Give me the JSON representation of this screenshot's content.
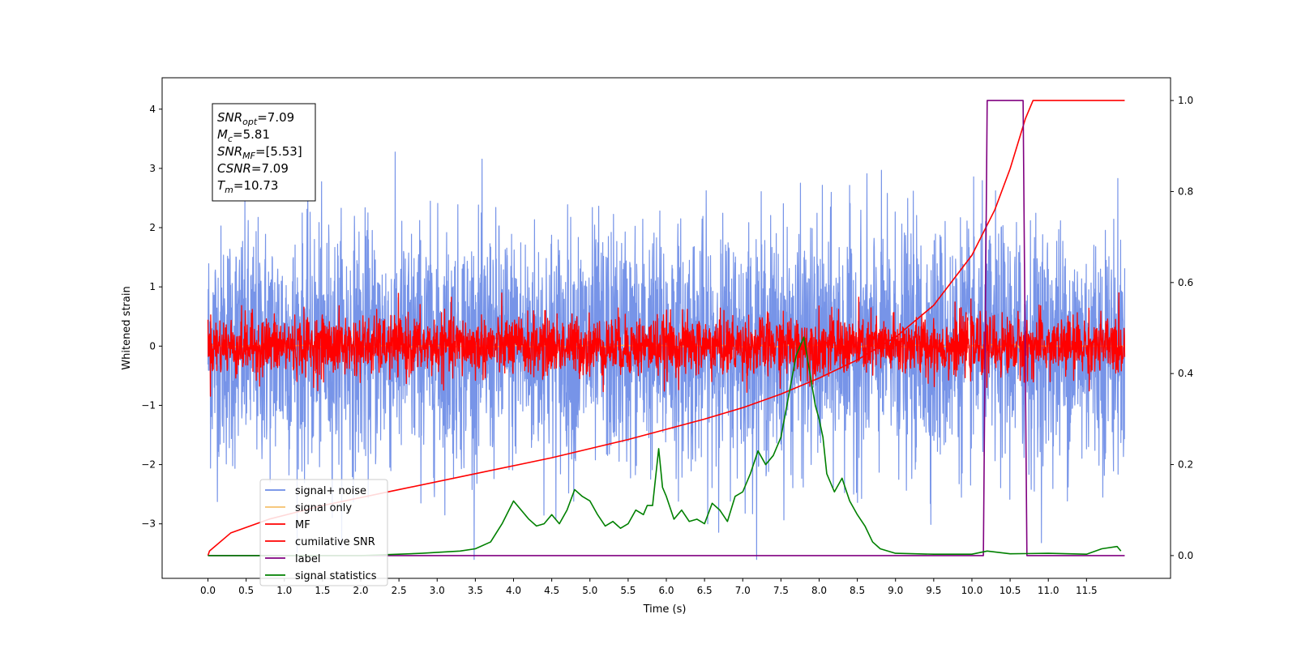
{
  "chart_data": {
    "type": "line",
    "xlabel": "Time (s)",
    "ylabel": "Whitened strain",
    "xlim": [
      -0.6,
      12.6
    ],
    "ylim": [
      -3.92,
      4.53
    ],
    "ylim_right": [
      -0.05,
      1.05
    ],
    "x_ticks": [
      "0.0",
      "0.5",
      "1.0",
      "1.5",
      "2.0",
      "2.5",
      "3.0",
      "3.5",
      "4.0",
      "4.5",
      "5.0",
      "5.5",
      "6.0",
      "6.5",
      "7.0",
      "7.5",
      "8.0",
      "8.5",
      "9.0",
      "9.5",
      "10.0",
      "10.5",
      "11.0",
      "11.5"
    ],
    "y_ticks": [
      "−3",
      "−2",
      "−1",
      "0",
      "1",
      "2",
      "3",
      "4"
    ],
    "y_ticks_right": [
      "0.0",
      "0.2",
      "0.4",
      "0.6",
      "0.8",
      "1.0"
    ],
    "grid": false,
    "legend_position": "lower-left",
    "annotation": [
      {
        "base": "SNR",
        "sub": "opt",
        "rest": "=7.09"
      },
      {
        "base": "M",
        "sub": "c",
        "rest": "=5.81"
      },
      {
        "base": "SNR",
        "sub": "MF",
        "rest": "=[5.53]"
      },
      {
        "base": "CSNR",
        "sub": "",
        "rest": "=7.09"
      },
      {
        "base": "T",
        "sub": "m",
        "rest": "=10.73"
      }
    ],
    "series": [
      {
        "name": "signal+ noise",
        "color": "#6b8be6",
        "axis": "left",
        "kind": "noise",
        "amplitude": 1.0,
        "x_range": [
          0.0,
          12.0
        ]
      },
      {
        "name": "signal only",
        "color": "#f5c16c",
        "axis": "left",
        "kind": "chirp",
        "x_range": [
          0.0,
          12.0
        ]
      },
      {
        "name": "MF",
        "color": "#ff0000",
        "axis": "left",
        "kind": "noise",
        "amplitude": 0.25,
        "x_range": [
          0.0,
          12.0
        ]
      },
      {
        "name": "cumilative SNR",
        "color": "#ff0000",
        "axis": "right",
        "x": [
          0.0,
          0.02,
          0.3,
          0.8,
          1.5,
          2.5,
          3.5,
          4.5,
          5.5,
          6.5,
          7.0,
          7.5,
          8.0,
          8.5,
          9.0,
          9.5,
          10.0,
          10.3,
          10.5,
          10.7,
          10.8,
          12.0
        ],
        "y": [
          0.0,
          0.01,
          0.05,
          0.08,
          0.11,
          0.145,
          0.18,
          0.215,
          0.255,
          0.3,
          0.325,
          0.355,
          0.39,
          0.43,
          0.48,
          0.55,
          0.66,
          0.76,
          0.85,
          0.96,
          1.0,
          1.0
        ]
      },
      {
        "name": "label",
        "color": "#800080",
        "axis": "right",
        "x": [
          0.0,
          10.15,
          10.2,
          10.67,
          10.72,
          12.0
        ],
        "y": [
          0.0,
          0.0,
          1.0,
          1.0,
          0.0,
          0.0
        ]
      },
      {
        "name": "signal statistics",
        "color": "#008000",
        "axis": "right",
        "x": [
          0.0,
          1.0,
          2.0,
          2.8,
          3.0,
          3.3,
          3.5,
          3.7,
          3.85,
          4.0,
          4.1,
          4.2,
          4.3,
          4.4,
          4.5,
          4.6,
          4.7,
          4.8,
          4.9,
          5.0,
          5.1,
          5.2,
          5.3,
          5.4,
          5.5,
          5.6,
          5.7,
          5.75,
          5.82,
          5.9,
          5.95,
          6.0,
          6.1,
          6.2,
          6.3,
          6.4,
          6.5,
          6.6,
          6.7,
          6.8,
          6.9,
          7.0,
          7.1,
          7.2,
          7.3,
          7.4,
          7.5,
          7.6,
          7.7,
          7.8,
          7.9,
          7.95,
          8.0,
          8.05,
          8.1,
          8.2,
          8.3,
          8.4,
          8.5,
          8.6,
          8.7,
          8.8,
          9.0,
          9.5,
          10.0,
          10.2,
          10.5,
          11.0,
          11.5,
          11.7,
          11.9,
          11.95
        ],
        "y": [
          0.0,
          0.0,
          0.0,
          0.005,
          0.007,
          0.01,
          0.015,
          0.03,
          0.07,
          0.12,
          0.1,
          0.08,
          0.065,
          0.07,
          0.09,
          0.07,
          0.1,
          0.145,
          0.13,
          0.12,
          0.09,
          0.065,
          0.075,
          0.06,
          0.07,
          0.1,
          0.09,
          0.11,
          0.11,
          0.235,
          0.15,
          0.13,
          0.08,
          0.1,
          0.075,
          0.08,
          0.07,
          0.115,
          0.1,
          0.075,
          0.13,
          0.14,
          0.18,
          0.23,
          0.2,
          0.22,
          0.26,
          0.35,
          0.44,
          0.48,
          0.38,
          0.33,
          0.3,
          0.26,
          0.18,
          0.14,
          0.17,
          0.12,
          0.09,
          0.065,
          0.03,
          0.015,
          0.005,
          0.003,
          0.003,
          0.01,
          0.004,
          0.005,
          0.003,
          0.015,
          0.02,
          0.01
        ]
      }
    ]
  }
}
